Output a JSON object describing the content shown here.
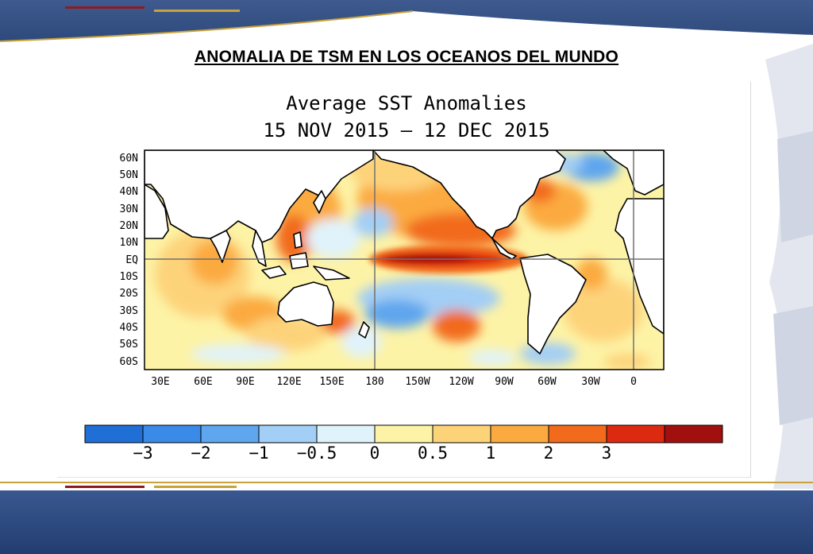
{
  "slide": {
    "title": "ANOMALIA DE TSM EN LOS OCEANOS DEL MUNDO"
  },
  "map": {
    "title_line1": "Average SST Anomalies",
    "title_line2": "15 NOV 2015 — 12 DEC 2015",
    "lat_labels": [
      "60N",
      "50N",
      "40N",
      "30N",
      "20N",
      "10N",
      "EQ",
      "10S",
      "20S",
      "30S",
      "40S",
      "50S",
      "60S"
    ],
    "lon_labels": [
      "30E",
      "60E",
      "90E",
      "120E",
      "150E",
      "180",
      "150W",
      "120W",
      "90W",
      "60W",
      "30W",
      "0"
    ]
  },
  "colorbar": {
    "tick_labels": [
      "−3",
      "−2",
      "−1",
      "−0.5",
      "0",
      "0.5",
      "1",
      "2",
      "3"
    ],
    "colors": [
      "#1f6fd6",
      "#3a8ae8",
      "#5ea6ee",
      "#a3cef5",
      "#e0f3fb",
      "#fdf3a6",
      "#fdd37a",
      "#fbaa40",
      "#f26a1c",
      "#dc2a10",
      "#a10f0f"
    ]
  },
  "theme": {
    "banner_blue": "#2e4a7c",
    "gold": "#c9a23b",
    "maroon": "#8c1c22"
  }
}
